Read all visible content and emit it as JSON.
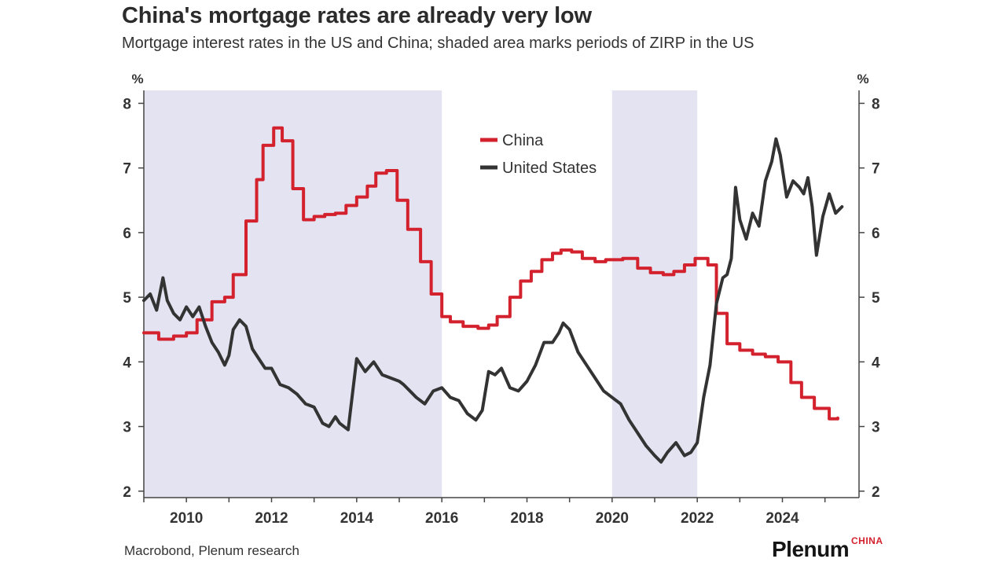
{
  "header": {
    "title": "China's mortgage rates are already very low",
    "subtitle": "Mortgage interest rates in the US and China; shaded area marks periods of ZIRP in the US"
  },
  "footer": {
    "source": "Macrobond, Plenum research",
    "brand": "Plenum",
    "brand_sub": "CHINA"
  },
  "chart_data": {
    "type": "line",
    "title": "China's mortgage rates are already very low",
    "subtitle": "Mortgage interest rates in the US and China; shaded area marks periods of ZIRP in the US",
    "y_unit_left": "%",
    "y_unit_right": "%",
    "xlim": [
      2009.0,
      2025.8
    ],
    "ylim": [
      1.9,
      8.2
    ],
    "x_ticks": [
      2010,
      2012,
      2014,
      2016,
      2018,
      2020,
      2022,
      2024
    ],
    "y_ticks": [
      2,
      3,
      4,
      5,
      6,
      7,
      8
    ],
    "grid": false,
    "legend_position": "top-center",
    "shaded_periods": [
      [
        2009.0,
        2016.0
      ],
      [
        2020.0,
        2022.0
      ]
    ],
    "colors": {
      "China": "#d3222e",
      "United States": "#333333",
      "shade": "#e3e3f1"
    },
    "series": [
      {
        "name": "China",
        "step": true,
        "x": [
          2009.0,
          2009.35,
          2009.7,
          2010.0,
          2010.25,
          2010.6,
          2010.9,
          2011.1,
          2011.4,
          2011.65,
          2011.8,
          2012.05,
          2012.25,
          2012.5,
          2012.75,
          2013.0,
          2013.25,
          2013.5,
          2013.75,
          2014.0,
          2014.25,
          2014.45,
          2014.7,
          2014.95,
          2015.2,
          2015.5,
          2015.75,
          2016.0,
          2016.2,
          2016.5,
          2016.85,
          2017.1,
          2017.3,
          2017.6,
          2017.85,
          2018.1,
          2018.35,
          2018.6,
          2018.8,
          2019.05,
          2019.3,
          2019.6,
          2019.85,
          2020.25,
          2020.6,
          2020.9,
          2021.2,
          2021.45,
          2021.7,
          2021.95,
          2022.25,
          2022.45,
          2022.7,
          2023.0,
          2023.3,
          2023.6,
          2023.9,
          2024.2,
          2024.45,
          2024.75,
          2025.1,
          2025.3
        ],
        "values": [
          4.45,
          4.35,
          4.4,
          4.45,
          4.65,
          4.93,
          5.0,
          5.35,
          6.18,
          6.82,
          7.35,
          7.62,
          7.42,
          6.68,
          6.2,
          6.25,
          6.28,
          6.3,
          6.42,
          6.55,
          6.72,
          6.92,
          6.96,
          6.5,
          6.05,
          5.55,
          5.05,
          4.7,
          4.62,
          4.55,
          4.52,
          4.57,
          4.7,
          5.0,
          5.25,
          5.4,
          5.58,
          5.68,
          5.73,
          5.7,
          5.6,
          5.55,
          5.58,
          5.6,
          5.45,
          5.38,
          5.35,
          5.4,
          5.5,
          5.6,
          5.5,
          4.75,
          4.28,
          4.18,
          4.12,
          4.08,
          4.0,
          3.68,
          3.45,
          3.28,
          3.12,
          3.13
        ]
      },
      {
        "name": "United States",
        "step": false,
        "x": [
          2009.0,
          2009.15,
          2009.3,
          2009.45,
          2009.55,
          2009.7,
          2009.85,
          2010.0,
          2010.15,
          2010.3,
          2010.45,
          2010.6,
          2010.75,
          2010.9,
          2011.0,
          2011.1,
          2011.25,
          2011.4,
          2011.55,
          2011.7,
          2011.85,
          2012.0,
          2012.2,
          2012.4,
          2012.6,
          2012.8,
          2013.0,
          2013.2,
          2013.35,
          2013.5,
          2013.6,
          2013.8,
          2014.0,
          2014.2,
          2014.4,
          2014.6,
          2014.8,
          2015.0,
          2015.1,
          2015.25,
          2015.4,
          2015.6,
          2015.8,
          2016.0,
          2016.2,
          2016.4,
          2016.6,
          2016.8,
          2016.95,
          2017.1,
          2017.25,
          2017.4,
          2017.6,
          2017.8,
          2018.0,
          2018.2,
          2018.4,
          2018.6,
          2018.75,
          2018.85,
          2019.0,
          2019.2,
          2019.4,
          2019.6,
          2019.8,
          2020.0,
          2020.2,
          2020.4,
          2020.6,
          2020.8,
          2021.0,
          2021.15,
          2021.3,
          2021.5,
          2021.7,
          2021.85,
          2022.0,
          2022.15,
          2022.3,
          2022.45,
          2022.6,
          2022.7,
          2022.8,
          2022.9,
          2023.0,
          2023.15,
          2023.3,
          2023.45,
          2023.6,
          2023.75,
          2023.85,
          2023.95,
          2024.1,
          2024.25,
          2024.4,
          2024.5,
          2024.6,
          2024.7,
          2024.8,
          2024.95,
          2025.1,
          2025.25,
          2025.4
        ],
        "values": [
          4.95,
          5.05,
          4.8,
          5.3,
          4.95,
          4.75,
          4.65,
          4.85,
          4.7,
          4.85,
          4.55,
          4.3,
          4.15,
          3.95,
          4.1,
          4.5,
          4.65,
          4.55,
          4.2,
          4.05,
          3.9,
          3.9,
          3.65,
          3.6,
          3.5,
          3.35,
          3.3,
          3.05,
          3.0,
          3.15,
          3.05,
          2.95,
          4.05,
          3.85,
          4.0,
          3.8,
          3.75,
          3.7,
          3.65,
          3.55,
          3.45,
          3.35,
          3.55,
          3.6,
          3.45,
          3.4,
          3.2,
          3.1,
          3.25,
          3.85,
          3.8,
          3.9,
          3.6,
          3.55,
          3.7,
          3.95,
          4.3,
          4.3,
          4.45,
          4.6,
          4.5,
          4.15,
          3.95,
          3.75,
          3.55,
          3.45,
          3.35,
          3.1,
          2.9,
          2.7,
          2.55,
          2.45,
          2.6,
          2.75,
          2.55,
          2.6,
          2.75,
          3.45,
          3.95,
          4.9,
          5.3,
          5.35,
          5.6,
          6.7,
          6.2,
          5.9,
          6.3,
          6.1,
          6.8,
          7.1,
          7.45,
          7.2,
          6.55,
          6.8,
          6.7,
          6.6,
          6.85,
          6.4,
          5.65,
          6.25,
          6.6,
          6.3,
          6.4
        ]
      }
    ]
  }
}
